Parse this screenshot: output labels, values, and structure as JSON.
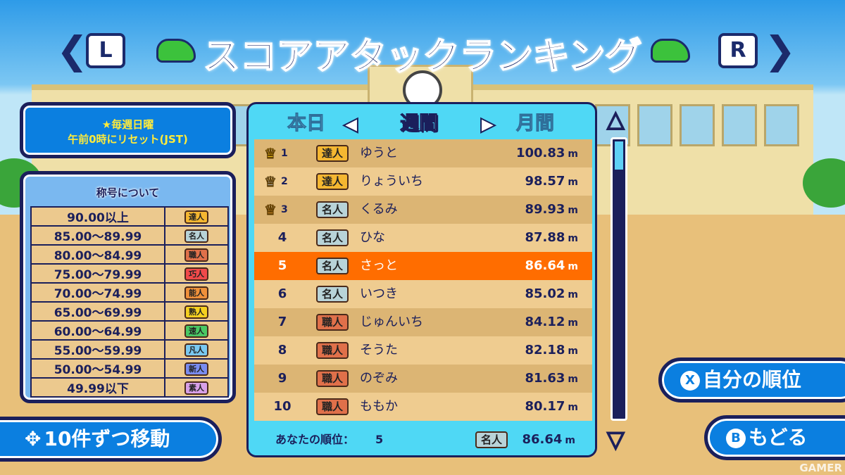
{
  "header": {
    "title": "スコアアタックランキング",
    "left_button": "L",
    "right_button": "R",
    "left_arrow": "❮",
    "right_arrow": "❯"
  },
  "info": {
    "line1": "★毎週日曜",
    "line2": "午前0時にリセット(JST)"
  },
  "legend": {
    "title": "称号について",
    "rows": [
      {
        "range": "90.00以上",
        "title": "達人",
        "color": "#f5b731"
      },
      {
        "range": "85.00～89.99",
        "title": "名人",
        "color": "#b8d3d8"
      },
      {
        "range": "80.00～84.99",
        "title": "職人",
        "color": "#e0704a"
      },
      {
        "range": "75.00～79.99",
        "title": "巧人",
        "color": "#f04a4a"
      },
      {
        "range": "70.00～74.99",
        "title": "能人",
        "color": "#f0903a"
      },
      {
        "range": "65.00～69.99",
        "title": "熟人",
        "color": "#f5d020"
      },
      {
        "range": "60.00～64.99",
        "title": "速人",
        "color": "#4ac864"
      },
      {
        "range": "55.00～59.99",
        "title": "凡人",
        "color": "#7ac8f0"
      },
      {
        "range": "50.00～54.99",
        "title": "新人",
        "color": "#7a8cf0"
      },
      {
        "range": "49.99以下",
        "title": "素人",
        "color": "#d8a0e8"
      }
    ]
  },
  "tabs": {
    "left": "本日",
    "active": "週間",
    "right": "月間",
    "prev": "◀",
    "next": "▶"
  },
  "ranking": [
    {
      "rank": "1",
      "title": "達人",
      "name": "ゆうと",
      "score": "100.83",
      "crown": "gold",
      "color": "#f5b731"
    },
    {
      "rank": "2",
      "title": "達人",
      "name": "りょういち",
      "score": "98.57",
      "crown": "silver",
      "color": "#f5b731"
    },
    {
      "rank": "3",
      "title": "名人",
      "name": "くるみ",
      "score": "89.93",
      "crown": "bronze",
      "color": "#b8d3d8"
    },
    {
      "rank": "4",
      "title": "名人",
      "name": "ひな",
      "score": "87.88",
      "color": "#b8d3d8"
    },
    {
      "rank": "5",
      "title": "名人",
      "name": "さっと",
      "score": "86.64",
      "color": "#b8d3d8",
      "highlight": true
    },
    {
      "rank": "6",
      "title": "名人",
      "name": "いつき",
      "score": "85.02",
      "color": "#b8d3d8"
    },
    {
      "rank": "7",
      "title": "職人",
      "name": "じゅんいち",
      "score": "84.12",
      "color": "#e0704a"
    },
    {
      "rank": "8",
      "title": "職人",
      "name": "そうた",
      "score": "82.18",
      "color": "#e0704a"
    },
    {
      "rank": "9",
      "title": "職人",
      "name": "のぞみ",
      "score": "81.63",
      "color": "#e0704a"
    },
    {
      "rank": "10",
      "title": "職人",
      "name": "ももか",
      "score": "80.17",
      "color": "#e0704a"
    }
  ],
  "unit": "m",
  "footer": {
    "label": "あなたの順位：",
    "rank": "5",
    "title": "名人",
    "score": "86.64",
    "color": "#b8d3d8"
  },
  "scroll": {
    "up": "△",
    "down": "▽",
    "position": 0
  },
  "buttons": {
    "my_rank": "自分の順位",
    "my_rank_key": "X",
    "back": "もどる",
    "back_key": "B",
    "page": "10件ずつ移動",
    "page_icon": "✥"
  },
  "watermark": "GAMER",
  "colors": {
    "highlight": "#ff6d00",
    "panel": "#4fd8f5",
    "button": "#0b7fe0"
  }
}
